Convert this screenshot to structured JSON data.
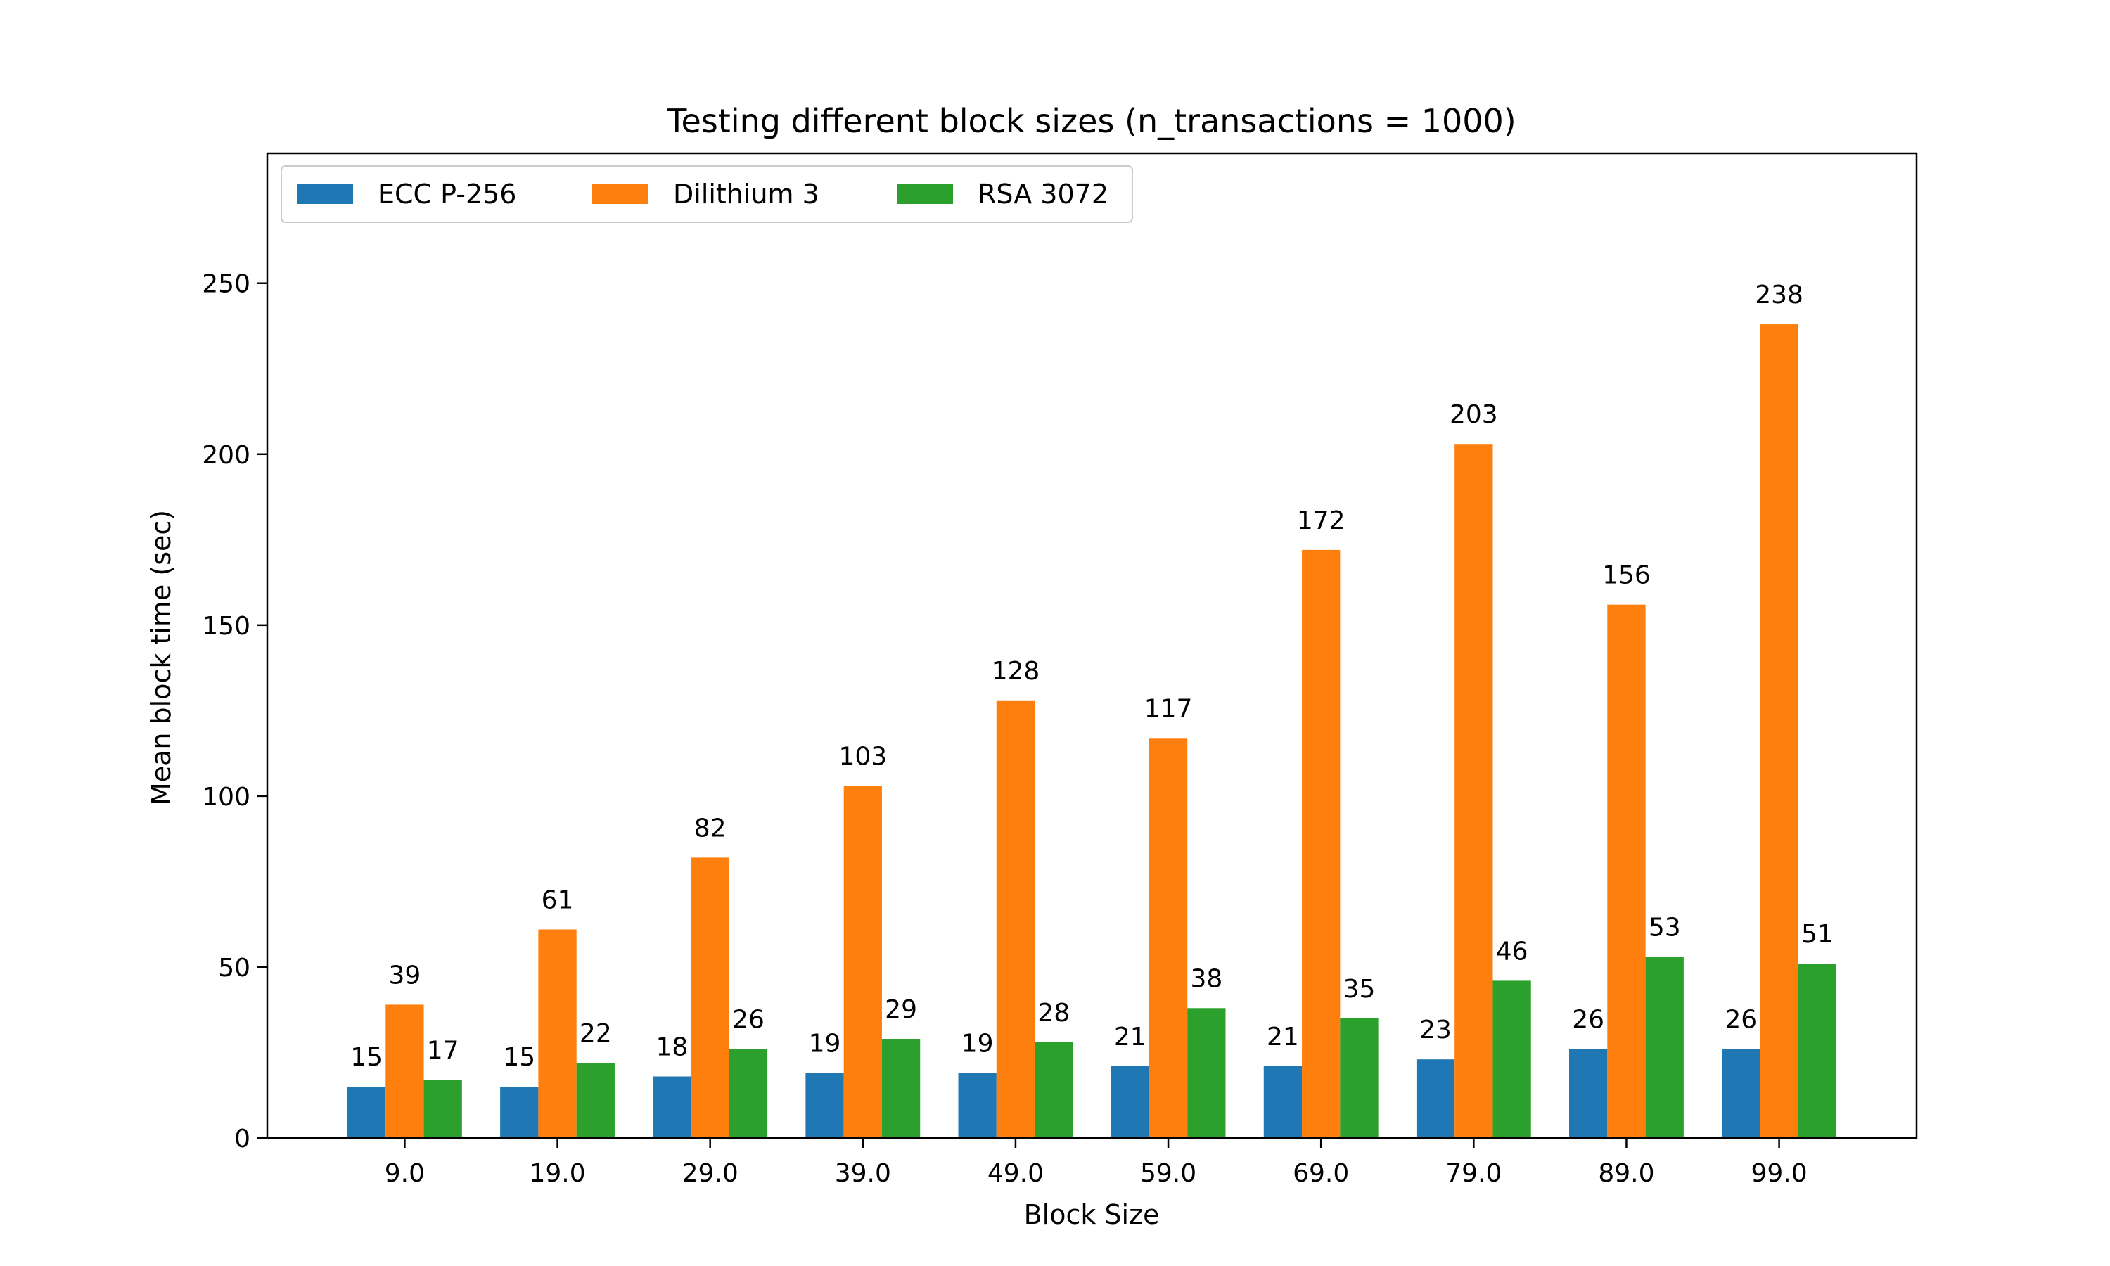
{
  "chart_data": {
    "type": "bar",
    "title": "Testing different block sizes (n_transactions = 1000)",
    "xlabel": "Block Size",
    "ylabel": "Mean block time (sec)",
    "categories": [
      "9.0",
      "19.0",
      "29.0",
      "39.0",
      "49.0",
      "59.0",
      "69.0",
      "79.0",
      "89.0",
      "99.0"
    ],
    "ylim": [
      0,
      288
    ],
    "yticks": [
      0,
      50,
      100,
      150,
      200,
      250
    ],
    "grid": false,
    "legend_position": "top-left",
    "series": [
      {
        "name": "ECC P-256",
        "color": "#1f77b4",
        "values": [
          15,
          15,
          18,
          19,
          19,
          21,
          21,
          23,
          26,
          26
        ]
      },
      {
        "name": "Dilithium 3",
        "color": "#ff7f0e",
        "values": [
          39,
          61,
          82,
          103,
          128,
          117,
          172,
          203,
          156,
          238
        ]
      },
      {
        "name": "RSA 3072",
        "color": "#2ca02c",
        "values": [
          17,
          22,
          26,
          29,
          28,
          38,
          35,
          46,
          53,
          51
        ]
      }
    ]
  }
}
